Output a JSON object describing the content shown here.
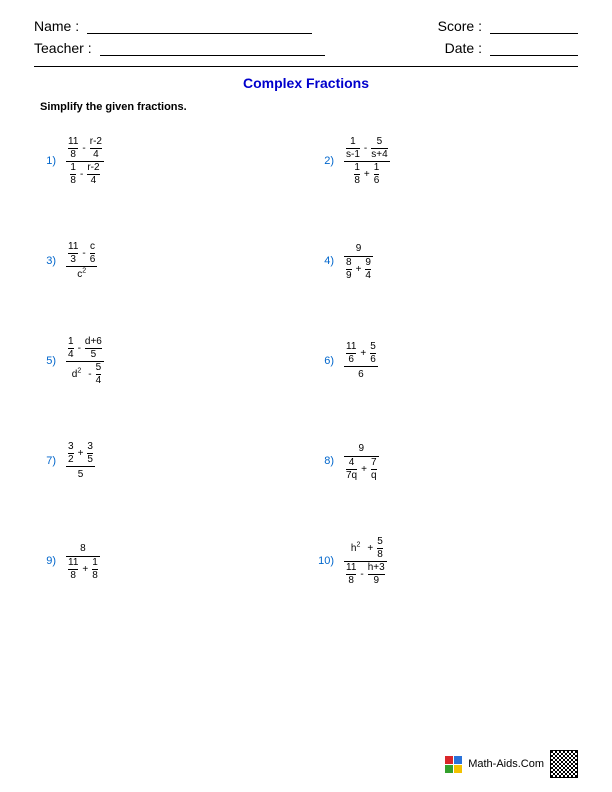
{
  "header": {
    "name_label": "Name :",
    "teacher_label": "Teacher :",
    "score_label": "Score :",
    "date_label": "Date :"
  },
  "title": {
    "text": "Complex Fractions",
    "color": "#0000cc"
  },
  "instructions": "Simplify the given fractions.",
  "number_color": "#0066cc",
  "problems": [
    {
      "n": "1)",
      "top": [
        {
          "n": "11",
          "d": "8"
        },
        "-",
        {
          "n": "r-2",
          "d": "4"
        }
      ],
      "bot": [
        {
          "n": "1",
          "d": "8"
        },
        "-",
        {
          "n": "r-2",
          "d": "4"
        }
      ]
    },
    {
      "n": "2)",
      "top": [
        {
          "n": "1",
          "d": "s-1"
        },
        "-",
        {
          "n": "5",
          "d": "s+4"
        }
      ],
      "bot": [
        {
          "n": "1",
          "d": "8"
        },
        "+",
        {
          "n": "1",
          "d": "6"
        }
      ]
    },
    {
      "n": "3)",
      "top": [
        {
          "n": "11",
          "d": "3"
        },
        "-",
        {
          "n": "c",
          "d": "6"
        }
      ],
      "bot": [
        {
          "raw": "c",
          "sup": "2"
        }
      ]
    },
    {
      "n": "4)",
      "top": [
        {
          "raw": "9"
        }
      ],
      "bot": [
        {
          "n": "8",
          "d": "9"
        },
        "+",
        {
          "n": "9",
          "d": "4"
        }
      ]
    },
    {
      "n": "5)",
      "top": [
        {
          "n": "1",
          "d": "4"
        },
        "-",
        {
          "n": "d+6",
          "d": "5"
        }
      ],
      "bot": [
        {
          "raw": "d",
          "sup": "2"
        },
        "-",
        {
          "n": "5",
          "d": "4"
        }
      ]
    },
    {
      "n": "6)",
      "top": [
        {
          "n": "11",
          "d": "6"
        },
        "+",
        {
          "n": "5",
          "d": "6"
        }
      ],
      "bot": [
        {
          "raw": "6"
        }
      ]
    },
    {
      "n": "7)",
      "top": [
        {
          "n": "3",
          "d": "2"
        },
        "+",
        {
          "n": "3",
          "d": "5"
        }
      ],
      "bot": [
        {
          "raw": "5"
        }
      ]
    },
    {
      "n": "8)",
      "top": [
        {
          "raw": "9"
        }
      ],
      "bot": [
        {
          "n": "4",
          "d": "7q"
        },
        "+",
        {
          "n": "7",
          "d": "q"
        }
      ]
    },
    {
      "n": "9)",
      "top": [
        {
          "raw": "8"
        }
      ],
      "bot": [
        {
          "n": "11",
          "d": "8"
        },
        "+",
        {
          "n": "1",
          "d": "8"
        }
      ]
    },
    {
      "n": "10)",
      "top": [
        {
          "raw": "h",
          "sup": "2"
        },
        "+",
        {
          "n": "5",
          "d": "8"
        }
      ],
      "bot": [
        {
          "n": "11",
          "d": "8"
        },
        "-",
        {
          "n": "h+3",
          "d": "9"
        }
      ]
    }
  ],
  "footer": {
    "text": "Math-Aids.Com",
    "logo_colors": [
      "#d9262a",
      "#2a72d9",
      "#33a02c",
      "#f2c200"
    ]
  }
}
